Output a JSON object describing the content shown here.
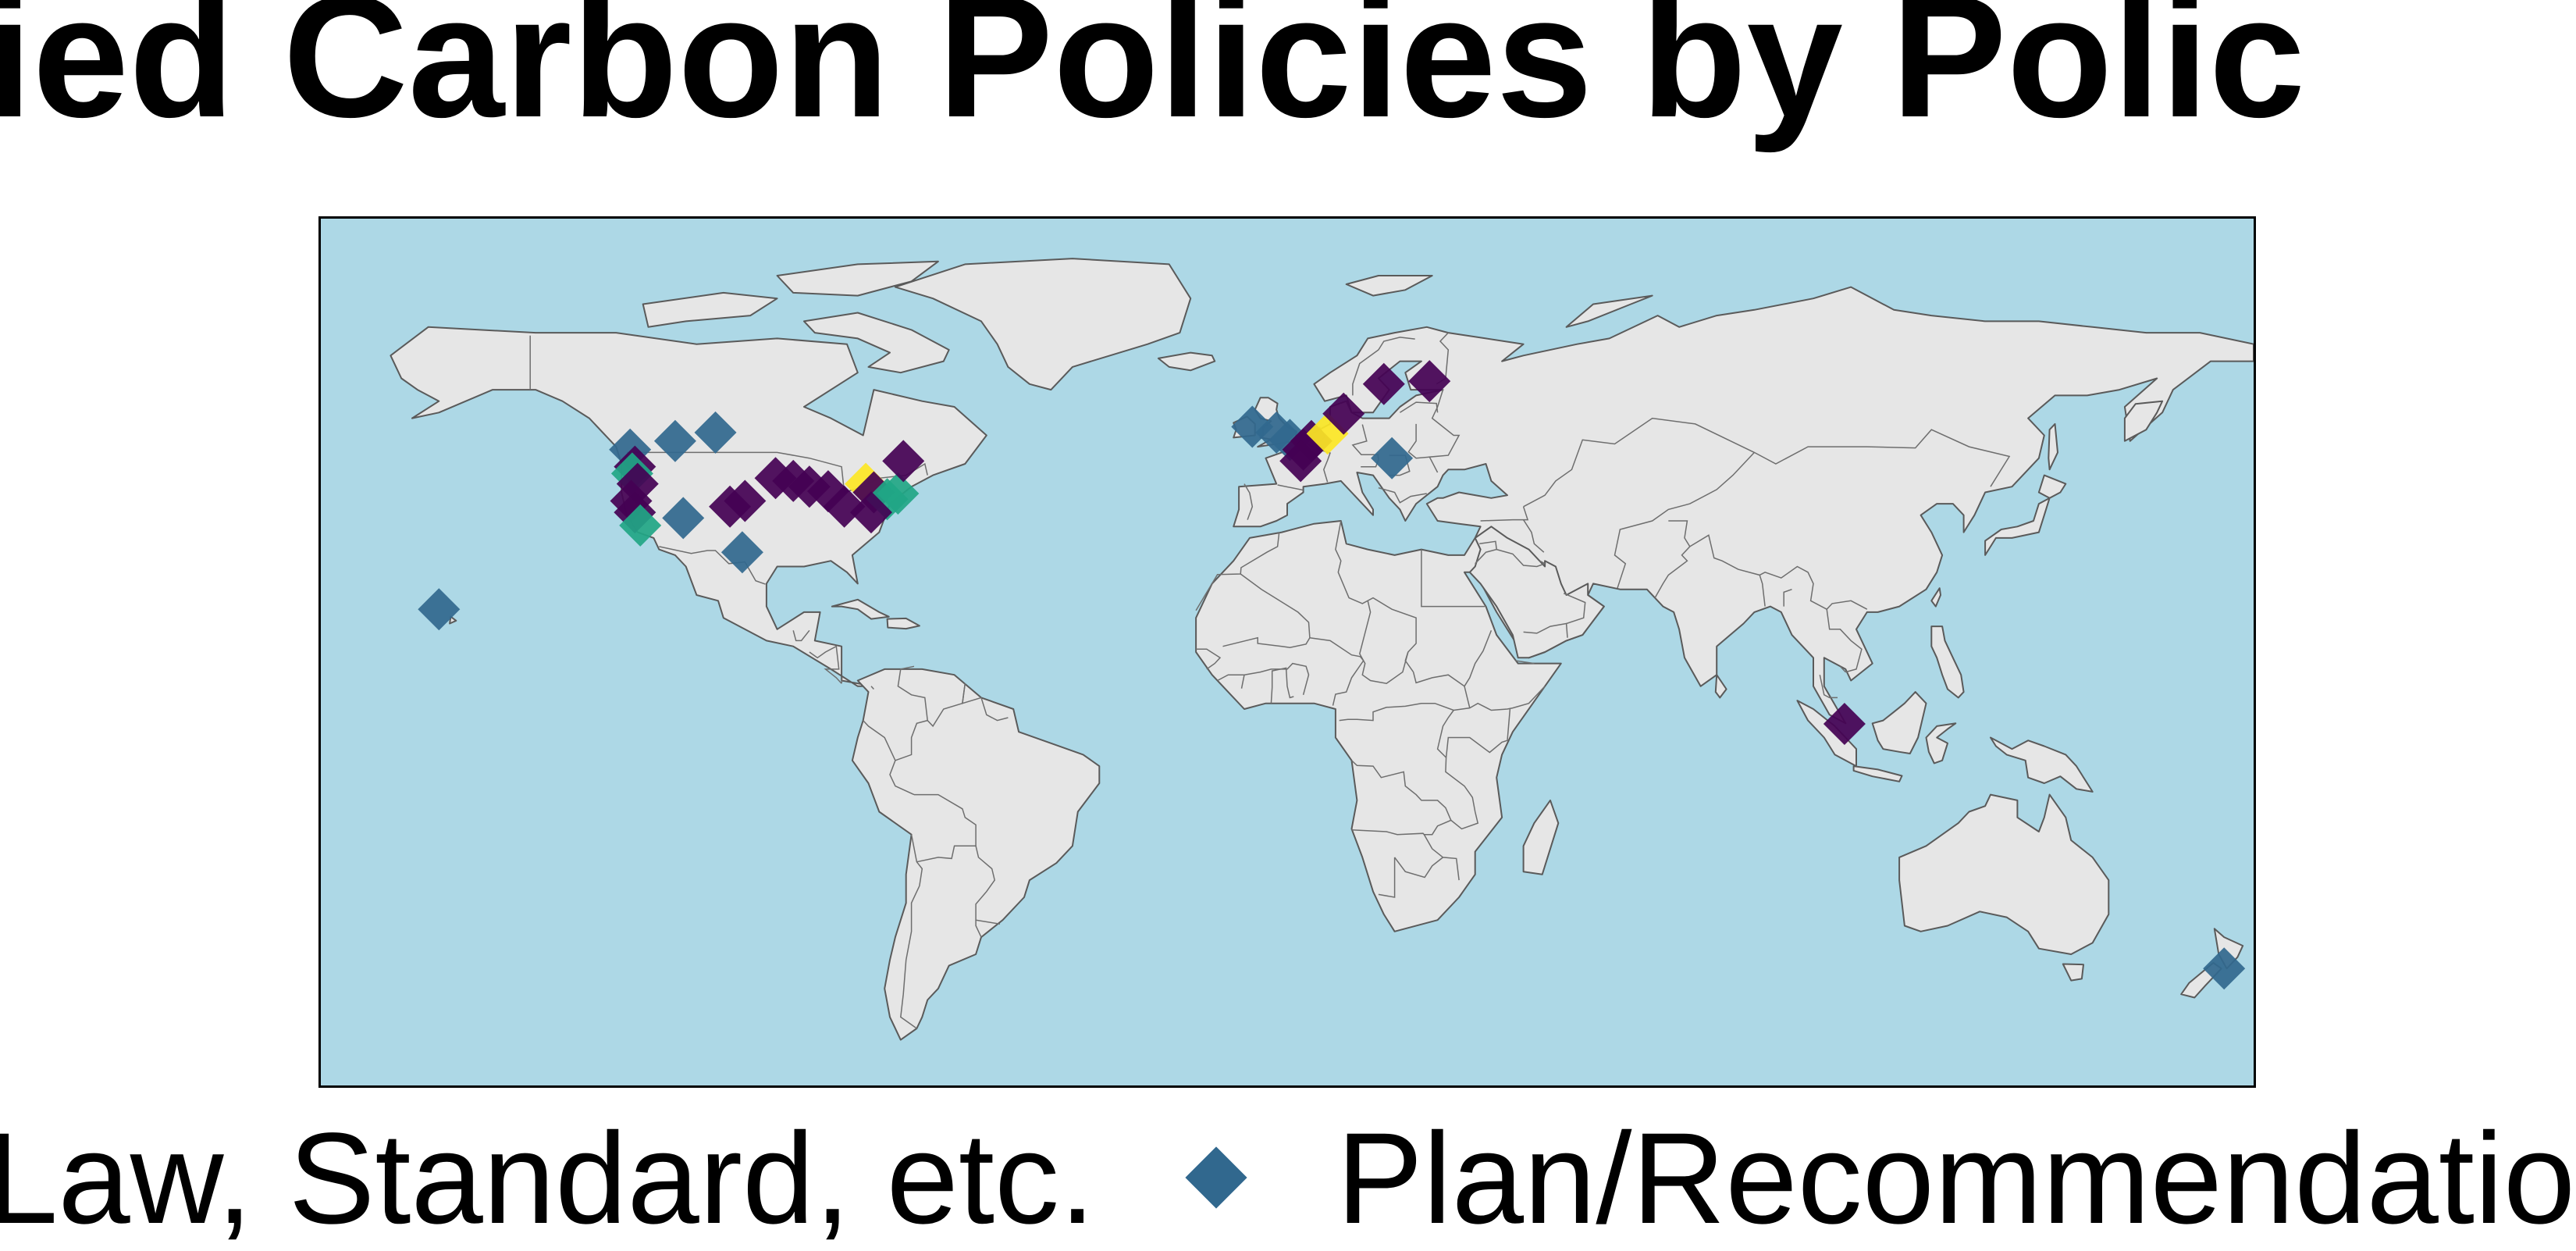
{
  "title": "ied Carbon Policies by Polic",
  "map": {
    "ocean_color": "#add8e6",
    "land_color": "#e6e6e6",
    "marker_shape": "diamond"
  },
  "categories": {
    "law": {
      "color": "#440154"
    },
    "plan": {
      "color": "#31688e"
    },
    "teal": {
      "color": "#21a685"
    },
    "yellow": {
      "color": "#fde725"
    }
  },
  "policies": [
    {
      "lon": -122.4,
      "lat": 49.5,
      "cat": "plan"
    },
    {
      "lon": -114.0,
      "lat": 51.0,
      "cat": "plan"
    },
    {
      "lon": -106.5,
      "lat": 52.5,
      "cat": "plan"
    },
    {
      "lon": -158.0,
      "lat": 21.5,
      "cat": "plan"
    },
    {
      "lon": -121.5,
      "lat": 46.5,
      "cat": "law"
    },
    {
      "lon": -122.0,
      "lat": 45.3,
      "cat": "teal"
    },
    {
      "lon": -121.0,
      "lat": 43.5,
      "cat": "law"
    },
    {
      "lon": -122.2,
      "lat": 40.5,
      "cat": "law"
    },
    {
      "lon": -121.5,
      "lat": 38.5,
      "cat": "law"
    },
    {
      "lon": -120.5,
      "lat": 36.2,
      "cat": "teal"
    },
    {
      "lon": -112.5,
      "lat": 37.5,
      "cat": "plan"
    },
    {
      "lon": -101.5,
      "lat": 31.5,
      "cat": "plan"
    },
    {
      "lon": -103.8,
      "lat": 39.5,
      "cat": "law"
    },
    {
      "lon": -101.0,
      "lat": 40.5,
      "cat": "law"
    },
    {
      "lon": -95.3,
      "lat": 44.5,
      "cat": "law"
    },
    {
      "lon": -92.0,
      "lat": 44.0,
      "cat": "law"
    },
    {
      "lon": -89.0,
      "lat": 43.0,
      "cat": "law"
    },
    {
      "lon": -85.5,
      "lat": 42.2,
      "cat": "law"
    },
    {
      "lon": -82.5,
      "lat": 39.5,
      "cat": "law"
    },
    {
      "lon": -78.5,
      "lat": 43.5,
      "cat": "yellow"
    },
    {
      "lon": -77.0,
      "lat": 42.0,
      "cat": "law"
    },
    {
      "lon": -74.5,
      "lat": 40.8,
      "cat": "teal"
    },
    {
      "lon": -72.5,
      "lat": 41.8,
      "cat": "teal"
    },
    {
      "lon": -71.5,
      "lat": 47.5,
      "cat": "law"
    },
    {
      "lon": -77.5,
      "lat": 38.5,
      "cat": "law"
    },
    {
      "lon": -6.5,
      "lat": 53.5,
      "cat": "plan"
    },
    {
      "lon": -2.0,
      "lat": 52.5,
      "cat": "plan"
    },
    {
      "lon": 0.5,
      "lat": 51.2,
      "cat": "plan"
    },
    {
      "lon": 4.5,
      "lat": 51.0,
      "cat": "law"
    },
    {
      "lon": 3.0,
      "lat": 49.5,
      "cat": "law"
    },
    {
      "lon": 2.5,
      "lat": 47.5,
      "cat": "law"
    },
    {
      "lon": 7.5,
      "lat": 52.3,
      "cat": "yellow"
    },
    {
      "lon": 10.5,
      "lat": 55.8,
      "cat": "law"
    },
    {
      "lon": 18.0,
      "lat": 61.0,
      "cat": "law"
    },
    {
      "lon": 26.5,
      "lat": 61.5,
      "cat": "law"
    },
    {
      "lon": 19.5,
      "lat": 48.0,
      "cat": "plan"
    },
    {
      "lon": 103.8,
      "lat": 1.4,
      "cat": "law"
    },
    {
      "lon": 174.5,
      "lat": -41.5,
      "cat": "plan"
    }
  ],
  "legend": [
    {
      "label": "Law, Standard, etc.",
      "cat": "law"
    },
    {
      "label": "Plan/Recommendation",
      "cat": "plan"
    }
  ]
}
